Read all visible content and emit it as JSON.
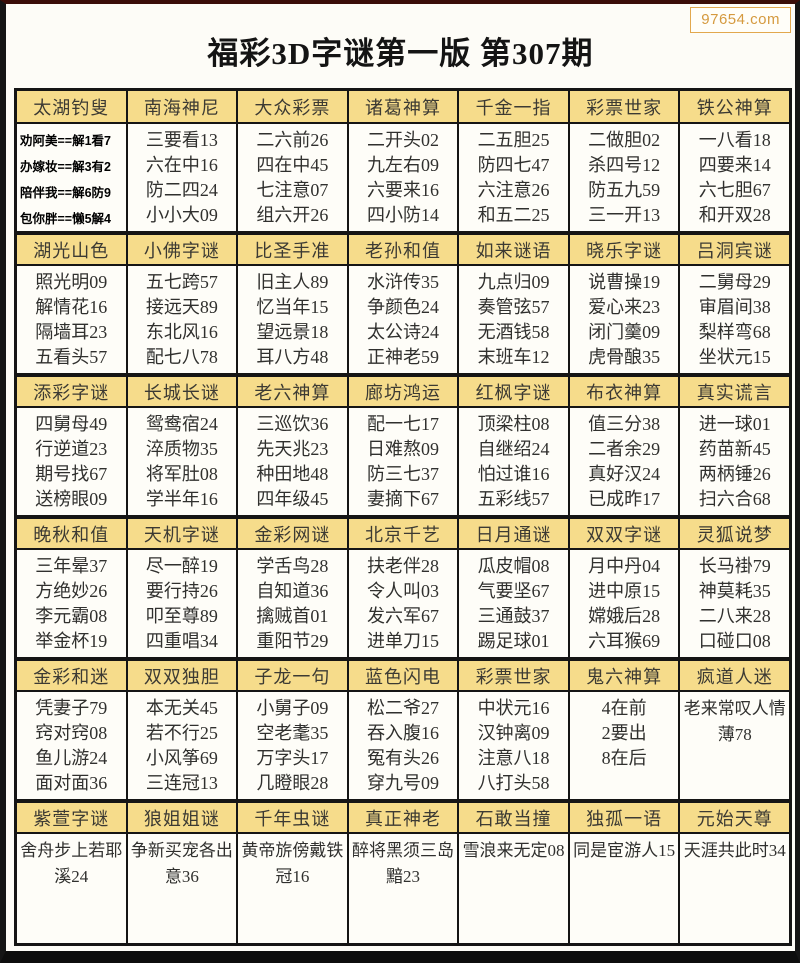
{
  "watermark": "97654.com",
  "title": "福彩3D字谜第一版 第307期",
  "colors": {
    "header_bg": "#f6dc8b",
    "border": "#151515",
    "watermark_accent": "#d59a3f"
  },
  "sections": [
    {
      "columns": [
        {
          "header": "太湖钓叟",
          "bold": true,
          "lines": [
            "劝阿美==解1看7",
            "办嫁妆==解3有2",
            "陪伴我==解6防9",
            "包你胖==懒5解4"
          ]
        },
        {
          "header": "南海神尼",
          "lines": [
            "三要看13",
            "六在中16",
            "防二四24",
            "小小大09"
          ]
        },
        {
          "header": "大众彩票",
          "lines": [
            "二六前26",
            "四在中45",
            "七注意07",
            "组六开26"
          ]
        },
        {
          "header": "诸葛神算",
          "lines": [
            "二开头02",
            "九左右09",
            "六要来16",
            "四小防14"
          ]
        },
        {
          "header": "千金一指",
          "lines": [
            "二五胆25",
            "防四七47",
            "六注意26",
            "和五二25"
          ]
        },
        {
          "header": "彩票世家",
          "lines": [
            "二做胆02",
            "杀四号12",
            "防五九59",
            "三一开13"
          ]
        },
        {
          "header": "铁公神算",
          "lines": [
            "一八看18",
            "四要来14",
            "六七胆67",
            "和开双28"
          ]
        }
      ]
    },
    {
      "columns": [
        {
          "header": "湖光山色",
          "lines": [
            "照光明09",
            "解情花16",
            "隔墙耳23",
            "五看头57"
          ]
        },
        {
          "header": "小佛字谜",
          "lines": [
            "五七跨57",
            "接远天89",
            "东北风16",
            "配七八78"
          ]
        },
        {
          "header": "比圣手准",
          "lines": [
            "旧主人89",
            "忆当年15",
            "望远景18",
            "耳八方48"
          ]
        },
        {
          "header": "老孙和值",
          "lines": [
            "水浒传35",
            "争颜色24",
            "太公诗24",
            "正神老59"
          ]
        },
        {
          "header": "如来谜语",
          "lines": [
            "九点归09",
            "奏管弦57",
            "无酒钱58",
            "末班车12"
          ]
        },
        {
          "header": "晓乐字谜",
          "lines": [
            "说曹操19",
            "爱心来23",
            "闭门羹09",
            "虎骨酿35"
          ]
        },
        {
          "header": "吕洞宾谜",
          "lines": [
            "二舅母29",
            "审眉间38",
            "梨样弯68",
            "坐状元15"
          ]
        }
      ]
    },
    {
      "columns": [
        {
          "header": "添彩字谜",
          "lines": [
            "四舅母49",
            "行逆道23",
            "期号找67",
            "送榜眼09"
          ]
        },
        {
          "header": "长城长谜",
          "lines": [
            "鸳鸯宿24",
            "淬质物35",
            "将军肚08",
            "学半年16"
          ]
        },
        {
          "header": "老六神算",
          "lines": [
            "三巡饮36",
            "先天兆23",
            "种田地48",
            "四年级45"
          ]
        },
        {
          "header": "廊坊鸿运",
          "lines": [
            "配一七17",
            "日难熬09",
            "防三七37",
            "妻摘下67"
          ]
        },
        {
          "header": "红枫字谜",
          "lines": [
            "顶梁柱08",
            "自继绍24",
            "怕过谁16",
            "五彩线57"
          ]
        },
        {
          "header": "布衣神算",
          "lines": [
            "值三分38",
            "二者余29",
            "真好汉24",
            "已成昨17"
          ]
        },
        {
          "header": "真实谎言",
          "lines": [
            "进一球01",
            "药苗新45",
            "两柄锤26",
            "扫六合68"
          ]
        }
      ]
    },
    {
      "columns": [
        {
          "header": "晚秋和值",
          "lines": [
            "三年晕37",
            "方绝妙26",
            "李元霸08",
            "举金杯19"
          ]
        },
        {
          "header": "天机字谜",
          "lines": [
            "尽一醉19",
            "要行持26",
            "叩至尊89",
            "四重唱34"
          ]
        },
        {
          "header": "金彩网谜",
          "lines": [
            "学舌鸟28",
            "自知道36",
            "擒贼首01",
            "重阳节29"
          ]
        },
        {
          "header": "北京千艺",
          "lines": [
            "扶老伴28",
            "令人叫03",
            "发六军67",
            "进单刀15"
          ]
        },
        {
          "header": "日月通谜",
          "lines": [
            "瓜皮帽08",
            "气要坚67",
            "三通鼓37",
            "踢足球01"
          ]
        },
        {
          "header": "双双字谜",
          "lines": [
            "月中丹04",
            "进中原15",
            "嫦娥后28",
            "六耳猴69"
          ]
        },
        {
          "header": "灵狐说梦",
          "lines": [
            "长马褂79",
            "神莫耗35",
            "二八来28",
            "口碰口08"
          ]
        }
      ]
    },
    {
      "columns": [
        {
          "header": "金彩和迷",
          "lines": [
            "凭妻子79",
            "窍对窍08",
            "鱼儿游24",
            "面对面36"
          ]
        },
        {
          "header": "双双独胆",
          "lines": [
            "本无关45",
            "若不行25",
            "小风筝69",
            "三连冠13"
          ]
        },
        {
          "header": "子龙一句",
          "lines": [
            "小舅子09",
            "空老耄35",
            "万字头17",
            "几瞪眼28"
          ]
        },
        {
          "header": "蓝色闪电",
          "lines": [
            "松二爷27",
            "吞入腹16",
            "冤有头26",
            "穿九号09"
          ]
        },
        {
          "header": "彩票世家",
          "lines": [
            "中状元16",
            "汉钟离09",
            "注意八18",
            "八打头58"
          ]
        },
        {
          "header": "鬼六神算",
          "lines": [
            "4在前",
            "2要出",
            "8在后"
          ]
        },
        {
          "header": "疯道人迷",
          "wrap": true,
          "lines": [
            "老来常叹人情薄78"
          ]
        }
      ]
    },
    {
      "columns": [
        {
          "header": "紫萱字谜",
          "wrap": true,
          "lines": [
            "舍舟步上若耶溪24"
          ]
        },
        {
          "header": "狼姐姐谜",
          "wrap": true,
          "lines": [
            "争新买宠各出意36"
          ]
        },
        {
          "header": "千年虫谜",
          "wrap": true,
          "lines": [
            "黄帝旂傍戴铁冠16"
          ]
        },
        {
          "header": "真正神老",
          "wrap": true,
          "lines": [
            "醉将黑须三岛黯23"
          ]
        },
        {
          "header": "石敢当撞",
          "wrap": true,
          "lines": [
            "雪浪来无定08"
          ]
        },
        {
          "header": "独孤一语",
          "wrap": true,
          "lines": [
            "同是宦游人15"
          ]
        },
        {
          "header": "元始天尊",
          "wrap": true,
          "lines": [
            "天涯共此时34"
          ]
        }
      ]
    }
  ]
}
